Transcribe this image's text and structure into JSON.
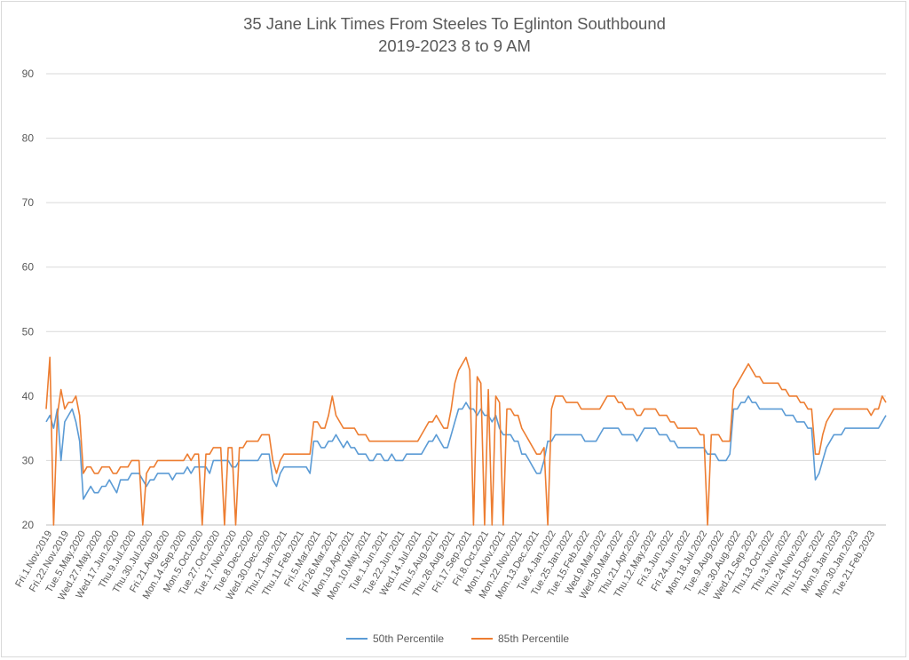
{
  "chart_data": {
    "type": "line",
    "title": "35 Jane Link Times From Steeles To Eglinton Southbound",
    "subtitle": "2019-2023 8 to 9 AM",
    "xlabel": "",
    "ylabel": "",
    "ylim": [
      20,
      90
    ],
    "yticks": [
      "20",
      "30",
      "40",
      "50",
      "60",
      "70",
      "80",
      "90"
    ],
    "grid": true,
    "legend_position": "bottom",
    "x_tick_labels": [
      "Fri.1.Nov.2019",
      "Fri.22.Nov.2019",
      "Tue.5.May.2020",
      "Wed.27.May.2020",
      "Wed.17.Jun.2020",
      "Thu.9.Jul.2020",
      "Thu.30.Jul.2020",
      "Fri.21.Aug.2020",
      "Mon.14.Sep.2020",
      "Mon.5.Oct.2020",
      "Tue.27.Oct.2020",
      "Tue.17.Nov.2020",
      "Tue.8.Dec.2020",
      "Wed.30.Dec.2020",
      "Thu.21.Jan.2021",
      "Thu.11.Feb.2021",
      "Fri.5.Mar.2021",
      "Fri.26.Mar.2021",
      "Mon.19.Apr.2021",
      "Mon.10.May.2021",
      "Tue.1.Jun.2021",
      "Tue.22.Jun.2021",
      "Wed.14.Jul.2021",
      "Thu.5.Aug.2021",
      "Thu.26.Aug.2021",
      "Fri.17.Sep.2021",
      "Fri.8.Oct.2021",
      "Mon.1.Nov.2021",
      "Mon.22.Nov.2021",
      "Mon.13.Dec.2021",
      "Tue.4.Jan.2022",
      "Tue.25.Jan.2022",
      "Tue.15.Feb.2022",
      "Wed.9.Mar.2022",
      "Wed.30.Mar.2022",
      "Thu.21.Apr.2022",
      "Thu.12.May.2022",
      "Fri.3.Jun.2022",
      "Fri.24.Jun.2022",
      "Mon.18.Jul.2022",
      "Tue.9.Aug.2022",
      "Tue.30.Aug.2022",
      "Wed.21.Sep.2022",
      "Thu.13.Oct.2022",
      "Thu.3.Nov.2022",
      "Thu.24.Nov.2022",
      "Thu.15.Dec.2022",
      "Mon.9.Jan.2023",
      "Mon.30.Jan.2023",
      "Tue.21.Feb.2023"
    ],
    "series": [
      {
        "name": "50th Percentile",
        "color": "#5b9bd5",
        "values": [
          36,
          37,
          35,
          38,
          30,
          36,
          37,
          38,
          36,
          33,
          24,
          25,
          26,
          25,
          25,
          26,
          26,
          27,
          26,
          25,
          27,
          27,
          27,
          28,
          28,
          28,
          27,
          26,
          27,
          27,
          28,
          28,
          28,
          28,
          27,
          28,
          28,
          28,
          29,
          28,
          29,
          29,
          29,
          29,
          28,
          30,
          30,
          30,
          30,
          30,
          29,
          29,
          30,
          30,
          30,
          30,
          30,
          30,
          31,
          31,
          31,
          27,
          26,
          28,
          29,
          29,
          29,
          29,
          29,
          29,
          29,
          28,
          33,
          33,
          32,
          32,
          33,
          33,
          34,
          33,
          32,
          33,
          32,
          32,
          31,
          31,
          31,
          30,
          30,
          31,
          31,
          30,
          30,
          31,
          30,
          30,
          30,
          31,
          31,
          31,
          31,
          31,
          32,
          33,
          33,
          34,
          33,
          32,
          32,
          34,
          36,
          38,
          38,
          39,
          38,
          38,
          37,
          38,
          37,
          37,
          36,
          37,
          35,
          34,
          34,
          34,
          33,
          33,
          31,
          31,
          30,
          29,
          28,
          28,
          30,
          33,
          33,
          34,
          34,
          34,
          34,
          34,
          34,
          34,
          34,
          33,
          33,
          33,
          33,
          34,
          35,
          35,
          35,
          35,
          35,
          34,
          34,
          34,
          34,
          33,
          34,
          35,
          35,
          35,
          35,
          34,
          34,
          34,
          33,
          33,
          32,
          32,
          32,
          32,
          32,
          32,
          32,
          32,
          31,
          31,
          31,
          30,
          30,
          30,
          31,
          38,
          38,
          39,
          39,
          40,
          39,
          39,
          38,
          38,
          38,
          38,
          38,
          38,
          38,
          37,
          37,
          37,
          36,
          36,
          36,
          35,
          35,
          27,
          28,
          30,
          32,
          33,
          34,
          34,
          34,
          35,
          35,
          35,
          35,
          35,
          35,
          35,
          35,
          35,
          35,
          36,
          37
        ]
      },
      {
        "name": "85th Percentile",
        "color": "#ed7d31",
        "values": [
          38,
          46,
          20,
          37,
          41,
          38,
          39,
          39,
          40,
          37,
          28,
          29,
          29,
          28,
          28,
          29,
          29,
          29,
          28,
          28,
          29,
          29,
          29,
          30,
          30,
          30,
          20,
          28,
          29,
          29,
          30,
          30,
          30,
          30,
          30,
          30,
          30,
          30,
          31,
          30,
          31,
          31,
          20,
          31,
          31,
          32,
          32,
          32,
          20,
          32,
          32,
          20,
          32,
          32,
          33,
          33,
          33,
          33,
          34,
          34,
          34,
          30,
          28,
          30,
          31,
          31,
          31,
          31,
          31,
          31,
          31,
          31,
          36,
          36,
          35,
          35,
          37,
          40,
          37,
          36,
          35,
          35,
          35,
          35,
          34,
          34,
          34,
          33,
          33,
          33,
          33,
          33,
          33,
          33,
          33,
          33,
          33,
          33,
          33,
          33,
          33,
          34,
          35,
          36,
          36,
          37,
          36,
          35,
          35,
          38,
          42,
          44,
          45,
          46,
          44,
          20,
          43,
          42,
          20,
          41,
          20,
          40,
          39,
          20,
          38,
          38,
          37,
          37,
          35,
          34,
          33,
          32,
          31,
          31,
          32,
          20,
          38,
          40,
          40,
          40,
          39,
          39,
          39,
          39,
          38,
          38,
          38,
          38,
          38,
          38,
          39,
          40,
          40,
          40,
          39,
          39,
          38,
          38,
          38,
          37,
          37,
          38,
          38,
          38,
          38,
          37,
          37,
          37,
          36,
          36,
          35,
          35,
          35,
          35,
          35,
          35,
          34,
          34,
          20,
          34,
          34,
          34,
          33,
          33,
          33,
          41,
          42,
          43,
          44,
          45,
          44,
          43,
          43,
          42,
          42,
          42,
          42,
          42,
          41,
          41,
          40,
          40,
          40,
          39,
          39,
          38,
          38,
          31,
          31,
          34,
          36,
          37,
          38,
          38,
          38,
          38,
          38,
          38,
          38,
          38,
          38,
          38,
          37,
          38,
          38,
          40,
          39
        ]
      }
    ]
  },
  "legend": {
    "item1": "50th Percentile",
    "item2": "85th Percentile"
  }
}
